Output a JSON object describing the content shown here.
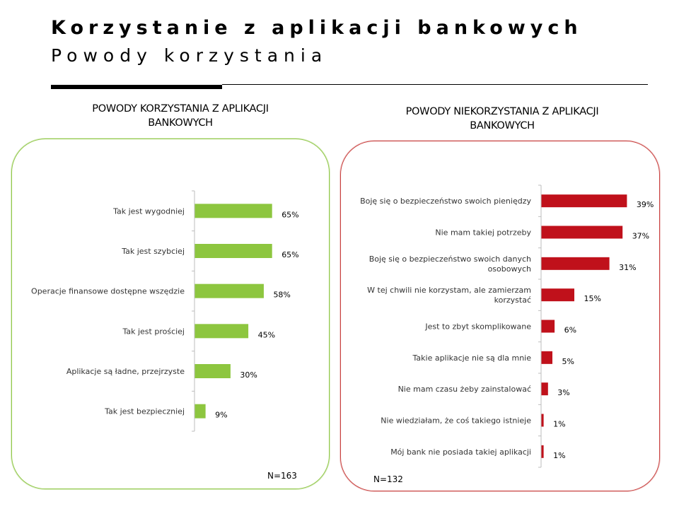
{
  "header": {
    "title": "Korzystanie z aplikacji bankowych",
    "subtitle": "Powody korzystania"
  },
  "colors": {
    "left_series": "#8dc63f",
    "left_border": "#92c84a",
    "right_series": "#c0111b",
    "right_border": "#c9413f"
  },
  "chart_data": [
    {
      "type": "bar",
      "orientation": "horizontal",
      "title_lines": [
        "POWODY KORZYSTANIA Z APLIKACJI",
        "BANKOWYCH"
      ],
      "categories": [
        [
          "Tak jest wygodniej"
        ],
        [
          "Tak jest szybciej"
        ],
        [
          "Operacje finansowe dostępne wszędzie"
        ],
        [
          "Tak jest prościej"
        ],
        [
          "Aplikacje są ładne, przejrzyste"
        ],
        [
          "Tak jest bezpieczniej"
        ]
      ],
      "values": [
        65,
        65,
        58,
        45,
        30,
        9
      ],
      "value_labels": [
        "65%",
        "65%",
        "58%",
        "45%",
        "30%",
        "9%"
      ],
      "xlim": [
        0,
        100
      ],
      "unit": "%",
      "grid": false,
      "note": "N=163"
    },
    {
      "type": "bar",
      "orientation": "horizontal",
      "title_lines": [
        "POWODY NIEKORZYSTANIA Z APLIKACJI",
        "BANKOWYCH"
      ],
      "categories": [
        [
          "Boję się o bezpieczeństwo swoich pieniędzy"
        ],
        [
          "Nie mam takiej potrzeby"
        ],
        [
          "Boję się o bezpieczeństwo swoich danych",
          "osobowych"
        ],
        [
          "W tej chwili nie korzystam, ale zamierzam",
          "korzystać"
        ],
        [
          "Jest to zbyt skomplikowane"
        ],
        [
          "Takie aplikacje nie są dla mnie"
        ],
        [
          "Nie mam czasu żeby zainstalować"
        ],
        [
          "Nie wiedziałam, że coś takiego istnieje"
        ],
        [
          "Mój bank nie posiada takiej aplikacji"
        ]
      ],
      "values": [
        39,
        37,
        31,
        15,
        6,
        5,
        3,
        1,
        1
      ],
      "value_labels": [
        "39%",
        "37%",
        "31%",
        "15%",
        "6%",
        "5%",
        "3%",
        "1%",
        "1%"
      ],
      "xlim": [
        0,
        100
      ],
      "unit": "%",
      "grid": false,
      "note": "N=132"
    }
  ]
}
